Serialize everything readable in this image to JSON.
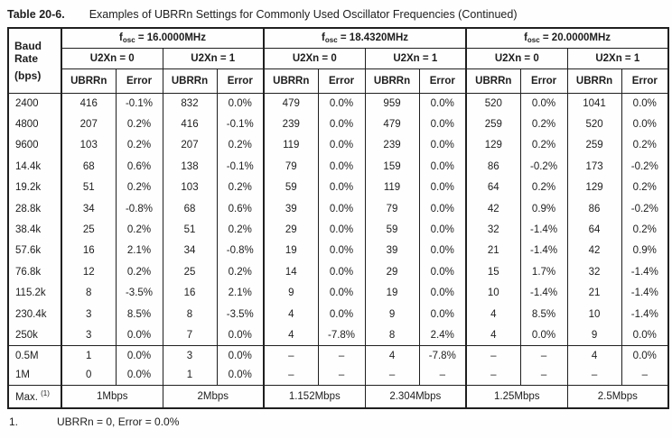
{
  "title": {
    "label": "Table 20-6.",
    "text": "Examples of UBRRn Settings for Commonly Used Oscillator Frequencies (Continued)"
  },
  "colors": {
    "background": "#fefefe",
    "text": "#1d1d1d",
    "border": "#1f1f1f"
  },
  "table": {
    "baud_header": [
      "Baud",
      "Rate",
      "(bps)"
    ],
    "col_headers": {
      "ubrr": "UBRRn",
      "error": "Error"
    },
    "groups": [
      {
        "fosc_base": "f",
        "fosc_sub": "osc",
        "fosc_rest": " = 16.0000MHz",
        "u2x0": "U2Xn = 0",
        "u2x1": "U2Xn = 1"
      },
      {
        "fosc_base": "f",
        "fosc_sub": "osc",
        "fosc_rest": " = 18.4320MHz",
        "u2x0": "U2Xn = 0",
        "u2x1": "U2Xn = 1"
      },
      {
        "fosc_base": "f",
        "fosc_sub": "osc",
        "fosc_rest": " = 20.0000MHz",
        "u2x0": "U2Xn = 0",
        "u2x1": "U2Xn = 1"
      }
    ],
    "rows": [
      {
        "baud": "2400",
        "cells": [
          "416",
          "-0.1%",
          "832",
          "0.0%",
          "479",
          "0.0%",
          "959",
          "0.0%",
          "520",
          "0.0%",
          "1041",
          "0.0%"
        ]
      },
      {
        "baud": "4800",
        "cells": [
          "207",
          "0.2%",
          "416",
          "-0.1%",
          "239",
          "0.0%",
          "479",
          "0.0%",
          "259",
          "0.2%",
          "520",
          "0.0%"
        ]
      },
      {
        "baud": "9600",
        "cells": [
          "103",
          "0.2%",
          "207",
          "0.2%",
          "119",
          "0.0%",
          "239",
          "0.0%",
          "129",
          "0.2%",
          "259",
          "0.2%"
        ]
      },
      {
        "baud": "14.4k",
        "cells": [
          "68",
          "0.6%",
          "138",
          "-0.1%",
          "79",
          "0.0%",
          "159",
          "0.0%",
          "86",
          "-0.2%",
          "173",
          "-0.2%"
        ]
      },
      {
        "baud": "19.2k",
        "cells": [
          "51",
          "0.2%",
          "103",
          "0.2%",
          "59",
          "0.0%",
          "119",
          "0.0%",
          "64",
          "0.2%",
          "129",
          "0.2%"
        ]
      },
      {
        "baud": "28.8k",
        "cells": [
          "34",
          "-0.8%",
          "68",
          "0.6%",
          "39",
          "0.0%",
          "79",
          "0.0%",
          "42",
          "0.9%",
          "86",
          "-0.2%"
        ]
      },
      {
        "baud": "38.4k",
        "cells": [
          "25",
          "0.2%",
          "51",
          "0.2%",
          "29",
          "0.0%",
          "59",
          "0.0%",
          "32",
          "-1.4%",
          "64",
          "0.2%"
        ]
      },
      {
        "baud": "57.6k",
        "cells": [
          "16",
          "2.1%",
          "34",
          "-0.8%",
          "19",
          "0.0%",
          "39",
          "0.0%",
          "21",
          "-1.4%",
          "42",
          "0.9%"
        ]
      },
      {
        "baud": "76.8k",
        "cells": [
          "12",
          "0.2%",
          "25",
          "0.2%",
          "14",
          "0.0%",
          "29",
          "0.0%",
          "15",
          "1.7%",
          "32",
          "-1.4%"
        ]
      },
      {
        "baud": "115.2k",
        "cells": [
          "8",
          "-3.5%",
          "16",
          "2.1%",
          "9",
          "0.0%",
          "19",
          "0.0%",
          "10",
          "-1.4%",
          "21",
          "-1.4%"
        ]
      },
      {
        "baud": "230.4k",
        "cells": [
          "3",
          "8.5%",
          "8",
          "-3.5%",
          "4",
          "0.0%",
          "9",
          "0.0%",
          "4",
          "8.5%",
          "10",
          "-1.4%"
        ]
      },
      {
        "baud": "250k",
        "cells": [
          "3",
          "0.0%",
          "7",
          "0.0%",
          "4",
          "-7.8%",
          "8",
          "2.4%",
          "4",
          "0.0%",
          "9",
          "0.0%"
        ]
      },
      {
        "baud": "0.5M",
        "cells": [
          "1",
          "0.0%",
          "3",
          "0.0%",
          "–",
          "–",
          "4",
          "-7.8%",
          "–",
          "–",
          "4",
          "0.0%"
        ]
      },
      {
        "baud": "1M",
        "cells": [
          "0",
          "0.0%",
          "1",
          "0.0%",
          "–",
          "–",
          "–",
          "–",
          "–",
          "–",
          "–",
          "–"
        ]
      }
    ],
    "max_row": {
      "label": "Max.",
      "footref": "(1)",
      "cells": [
        "1Mbps",
        "2Mbps",
        "1.152Mbps",
        "2.304Mbps",
        "1.25Mbps",
        "2.5Mbps"
      ]
    }
  },
  "footnote": {
    "number": "1.",
    "text": "UBRRn = 0, Error = 0.0%"
  }
}
